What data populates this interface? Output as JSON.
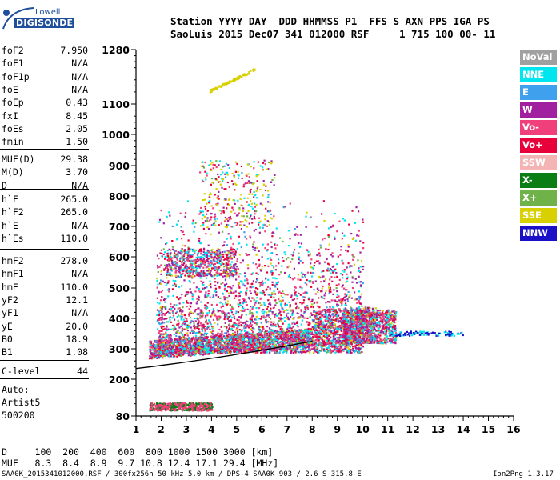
{
  "logo": {
    "line1": "Lowell",
    "line2": "DIGISONDE"
  },
  "header": {
    "labels": "Station YYYY DAY  DDD HHMMSS P1  FFS S AXN PPS IGA PS",
    "values": "SaoLuis 2015 Dec07 341 012000 RSF     1 715 100 00- 11"
  },
  "params_group1": [
    {
      "name": "foF2",
      "value": "7.950"
    },
    {
      "name": "foF1",
      "value": "N/A"
    },
    {
      "name": "foF1p",
      "value": "N/A"
    },
    {
      "name": "foE",
      "value": "N/A"
    },
    {
      "name": "foEp",
      "value": "0.43"
    },
    {
      "name": "fxI",
      "value": "8.45"
    },
    {
      "name": "foEs",
      "value": "2.05"
    },
    {
      "name": "fmin",
      "value": "1.50"
    }
  ],
  "params_group2": [
    {
      "name": "MUF(D)",
      "value": "29.38"
    },
    {
      "name": "M(D)",
      "value": "3.70"
    },
    {
      "name": "D",
      "value": "N/A"
    }
  ],
  "params_group3": [
    {
      "name": "h`F",
      "value": "265.0"
    },
    {
      "name": "h`F2",
      "value": "265.0"
    },
    {
      "name": "h`E",
      "value": "N/A"
    },
    {
      "name": "h`Es",
      "value": "110.0"
    }
  ],
  "params_group4": [
    {
      "name": "hmF2",
      "value": "278.0"
    },
    {
      "name": "hmF1",
      "value": "N/A"
    },
    {
      "name": "hmE",
      "value": "110.0"
    },
    {
      "name": "yF2",
      "value": "12.1"
    },
    {
      "name": "yF1",
      "value": "N/A"
    },
    {
      "name": "yE",
      "value": "20.0"
    },
    {
      "name": "B0",
      "value": "18.9"
    },
    {
      "name": "B1",
      "value": "1.08"
    }
  ],
  "clevel": {
    "name": "C-level",
    "value": "44"
  },
  "auto": {
    "line1": "Auto:",
    "line2": "Artist5",
    "line3": "500200"
  },
  "legend": [
    {
      "label": "NoVal",
      "color": "#a0a0a0"
    },
    {
      "label": "NNE",
      "color": "#00e5ee"
    },
    {
      "label": "E",
      "color": "#3fa0ee"
    },
    {
      "label": "W",
      "color": "#a020a0"
    },
    {
      "label": "Vo-",
      "color": "#f0407c"
    },
    {
      "label": "Vo+",
      "color": "#e8003a"
    },
    {
      "label": "SSW",
      "color": "#f4b4b4"
    },
    {
      "label": "X-",
      "color": "#0a7d14"
    },
    {
      "label": "X+",
      "color": "#70b24a"
    },
    {
      "label": "SSE",
      "color": "#d8d000"
    },
    {
      "label": "NNW",
      "color": "#1a10c8"
    }
  ],
  "plot": {
    "x_ticks": [
      "1",
      "2",
      "3",
      "4",
      "5",
      "6",
      "7",
      "8",
      "9",
      "10",
      "11",
      "12",
      "13",
      "14",
      "15",
      "16"
    ],
    "y_ticks": [
      "80",
      "200",
      "300",
      "400",
      "500",
      "600",
      "700",
      "800",
      "900",
      "1000",
      "1100",
      "1280"
    ]
  },
  "bottom": {
    "d_row": "D     100  200  400  600  800 1000 1500 3000 [km]",
    "muf_row": "MUF   8.3  8.4  8.9  9.7 10.8 12.4 17.1 29.4 [MHz]"
  },
  "footer": {
    "left": "SAA0K_2015341012000.RSF / 300fx256h 50 kHz 5.0 km / DPS-4 SAA0K 903 / 2.6 S 315.8 E",
    "right": "Ion2Png 1.3.17"
  }
}
